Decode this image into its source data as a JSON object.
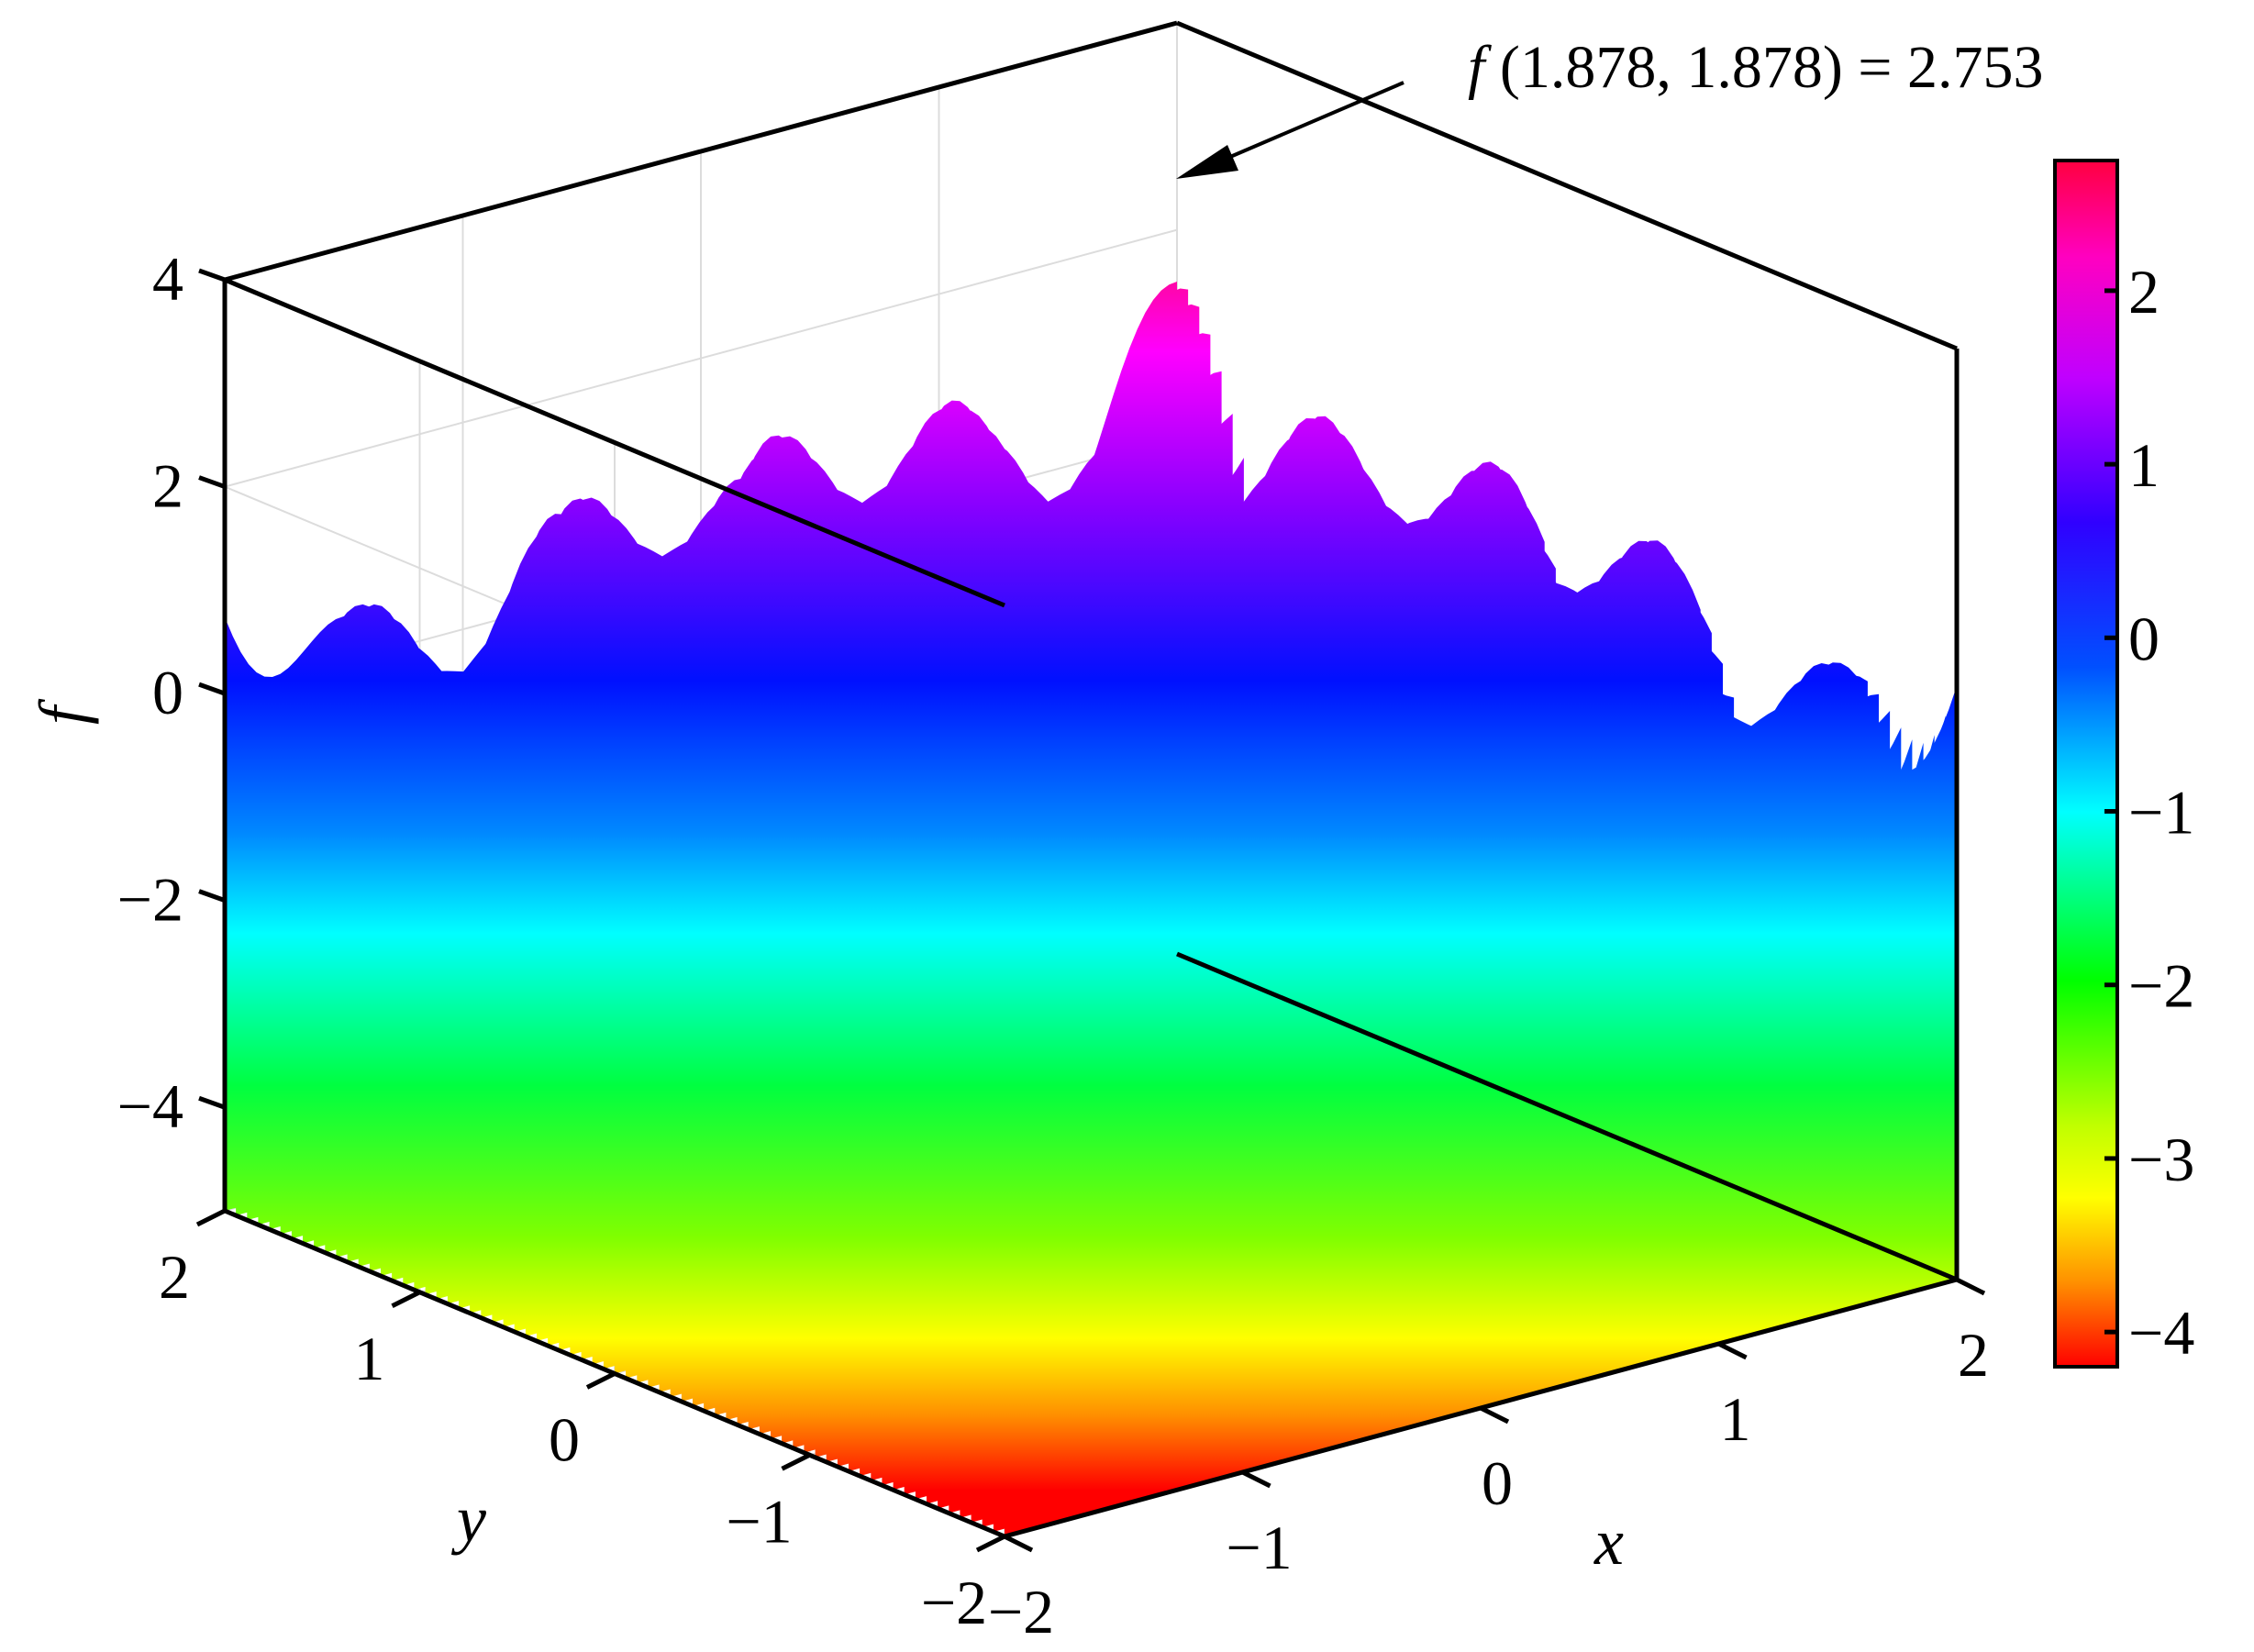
{
  "chart_data": {
    "type": "surface3d",
    "title": "",
    "xlabel": "x",
    "ylabel": "y",
    "zlabel": "f",
    "xlim": [
      -2,
      2
    ],
    "ylim": [
      -2,
      2
    ],
    "zlim": [
      -5,
      4
    ],
    "x_ticks": [
      "−2",
      "−1",
      "0",
      "1",
      "2"
    ],
    "y_ticks": [
      "−2",
      "−1",
      "0",
      "1",
      "2"
    ],
    "z_ticks": [
      "−4",
      "−2",
      "0",
      "2",
      "4"
    ],
    "colorbar": {
      "range": [
        -4.2,
        2.75
      ],
      "ticks": [
        "−4",
        "−3",
        "−2",
        "−1",
        "0",
        "1",
        "2"
      ],
      "colormap": [
        "#ff0000",
        "#ff8c00",
        "#ffff00",
        "#00e800",
        "#00ffff",
        "#0000ff",
        "#8000ff",
        "#ff00ff",
        "#ff0040"
      ]
    },
    "grid": true,
    "surface_description": "oscillating ripple surface, minimum near f ≈ −4.2",
    "annotation": {
      "label_fn": "f",
      "label_rest": " (1.878, 1.878) = 2.753",
      "point": [
        1.878,
        1.878,
        2.753
      ]
    }
  }
}
